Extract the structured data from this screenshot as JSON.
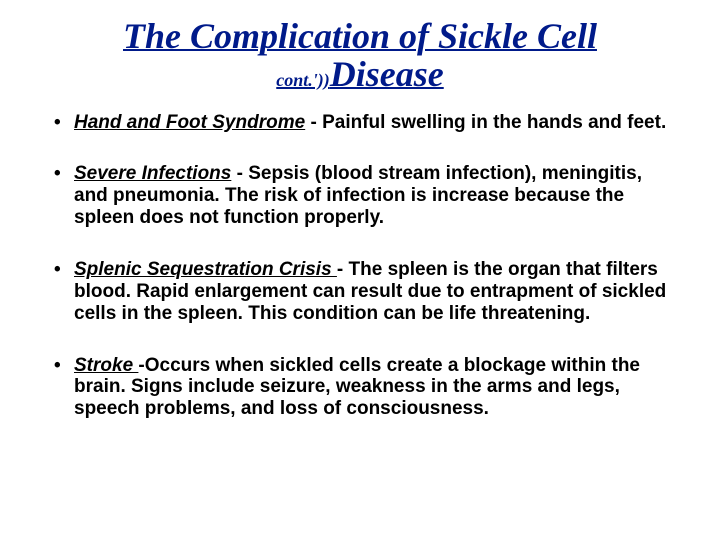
{
  "title": {
    "line1": "The Complication of Sickle Cell",
    "line2_small": "cont.'))",
    "line2_big": "Disease",
    "color": "#001a8a"
  },
  "bullets": [
    {
      "term": "Hand and Foot Syndrome",
      "sep": " - ",
      "body": "Painful swelling in the hands and feet."
    },
    {
      "term": "Severe Infections",
      "sep": " - ",
      "body": "Sepsis (blood stream infection), meningitis, and pneumonia. The risk of infection is increase because the spleen does not function properly."
    },
    {
      "term": "Splenic Sequestration Crisis ",
      "sep": " - ",
      "body": "The spleen is the organ that filters blood. Rapid enlargement can result due to entrapment of sickled cells in the spleen. This condition can be life threatening."
    },
    {
      "term": "Stroke ",
      "sep": " -",
      "body": "Occurs when sickled cells create a blockage within the brain. Signs include seizure, weakness in the arms and legs, speech problems, and loss of consciousness."
    }
  ],
  "style": {
    "background_color": "#ffffff",
    "title_font": "Times New Roman",
    "title_fontsize_main": 36,
    "title_fontsize_small": 18,
    "body_font": "Arial",
    "body_fontsize": 19,
    "body_fontweight": "bold",
    "bullet_color": "#000000"
  }
}
